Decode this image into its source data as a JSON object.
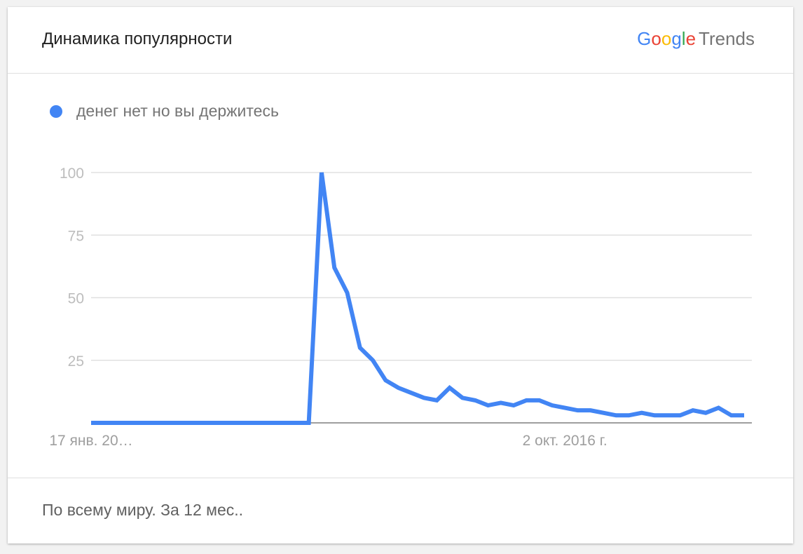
{
  "header": {
    "title": "Динамика популярности",
    "logo_google": "Google",
    "logo_trends": "Trends"
  },
  "footer": {
    "text": "По всему миру. За 12 мес.."
  },
  "colors": {
    "series": "#4285f4",
    "grid": "#e0e0e0",
    "axis": "#9e9e9e"
  },
  "chart_data": {
    "type": "line",
    "title": "",
    "xlabel": "",
    "ylabel": "",
    "ylim": [
      0,
      100
    ],
    "yticks": [
      25,
      50,
      75,
      100
    ],
    "ytick_labels": [
      "25",
      "50",
      "75",
      "100"
    ],
    "xtick_labels": [
      {
        "index": 0,
        "label": "17 янв. 20…"
      },
      {
        "index": 37,
        "label": "2 окт. 2016 г."
      }
    ],
    "grid": true,
    "legend": "top-left",
    "series": [
      {
        "name": "денег нет но вы держитесь",
        "color": "#4285f4",
        "values": [
          0,
          0,
          0,
          0,
          0,
          0,
          0,
          0,
          0,
          0,
          0,
          0,
          0,
          0,
          0,
          0,
          0,
          0,
          100,
          62,
          52,
          30,
          25,
          17,
          14,
          12,
          10,
          9,
          14,
          10,
          9,
          7,
          8,
          7,
          9,
          9,
          7,
          6,
          5,
          5,
          4,
          3,
          3,
          4,
          3,
          3,
          3,
          5,
          4,
          6,
          3,
          3
        ]
      }
    ]
  }
}
